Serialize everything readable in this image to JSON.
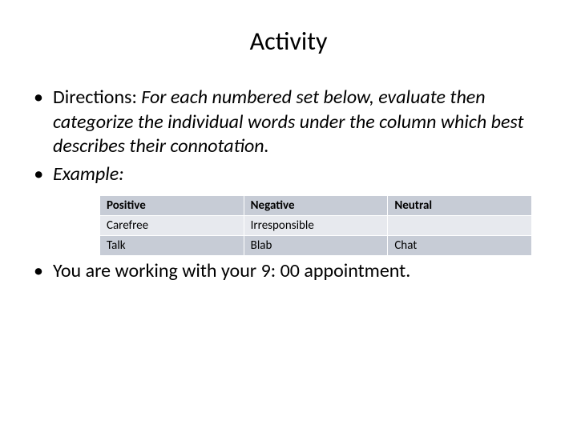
{
  "title": "Activity",
  "bullet1": {
    "label": "Directions: ",
    "text": "For each numbered set below, evaluate then categorize the individual words under the column which best describes their connotation."
  },
  "bullet2": "Example:",
  "table": {
    "columns": [
      "Positive",
      "Negative",
      "Neutral"
    ],
    "rows": [
      [
        "Carefree",
        "Irresponsible",
        ""
      ],
      [
        "Talk",
        "Blab",
        "Chat"
      ]
    ],
    "header_bg": "#c7ccd6",
    "row_bg_light": "#e7e9ee",
    "row_bg_dark": "#c7ccd6",
    "border_color": "#ffffff",
    "font_size": 15
  },
  "bullet3": "You are working with your 9: 00 appointment."
}
